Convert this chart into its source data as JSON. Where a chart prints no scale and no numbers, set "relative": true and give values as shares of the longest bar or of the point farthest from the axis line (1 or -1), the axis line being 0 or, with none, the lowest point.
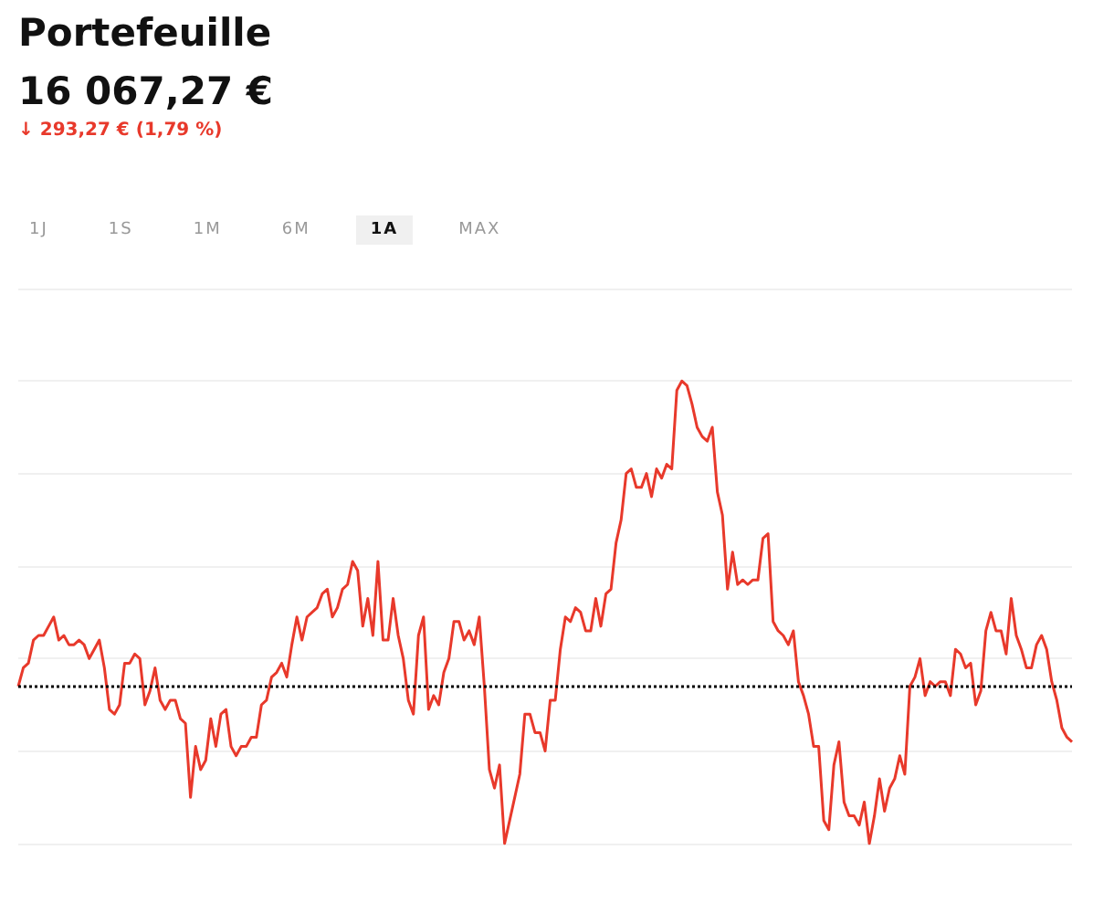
{
  "chart_data": {
    "type": "line",
    "title": "Portefeuille",
    "subtitle": "16 067,27 €",
    "annotations": [
      "↓ 293,27 € (1,79 %)",
      "1J",
      "1S",
      "1M",
      "6M",
      "1A",
      "MAX"
    ],
    "relative": true,
    "grid": "y",
    "line_style": "solid",
    "categories": [
      null,
      null,
      null,
      null,
      null,
      null,
      null,
      null,
      null,
      null,
      null,
      null,
      null,
      null,
      null,
      null,
      null,
      null,
      null,
      null,
      null,
      null,
      null,
      null,
      null,
      null,
      null,
      null,
      null,
      null,
      null,
      null,
      null,
      null,
      null,
      null,
      null,
      null,
      null,
      null,
      null,
      null,
      null,
      null,
      null,
      null,
      null,
      null,
      null,
      null,
      null,
      null,
      null,
      null,
      null,
      null,
      null,
      null,
      null,
      null,
      null,
      null,
      null,
      null,
      null,
      null,
      null,
      null,
      null,
      null,
      null,
      null,
      null,
      null,
      null,
      null,
      null,
      null,
      null,
      null,
      null,
      null,
      null,
      null,
      null,
      null,
      null,
      null,
      null,
      null,
      null,
      null,
      null,
      null,
      null,
      null,
      null,
      null,
      null,
      null,
      null,
      null,
      null,
      null,
      null,
      null,
      null,
      null,
      null,
      null,
      null,
      null,
      null,
      null,
      null,
      null,
      null,
      null,
      null,
      null,
      null,
      null,
      null,
      null,
      null,
      null,
      null,
      null,
      null,
      null,
      null,
      null,
      null,
      null,
      null,
      null,
      null,
      null,
      null,
      null,
      null,
      null,
      null,
      null,
      null,
      null,
      null,
      null,
      null,
      null,
      null,
      null,
      null,
      null,
      null,
      null,
      null,
      null,
      null,
      null,
      null,
      null,
      null,
      null,
      null,
      null,
      null,
      null,
      null,
      null,
      null,
      null,
      null,
      null,
      null,
      null,
      null,
      null,
      null,
      null,
      null,
      null,
      null,
      null,
      null,
      null,
      null,
      null,
      null,
      null,
      null,
      null,
      null,
      null,
      null,
      null,
      null,
      null,
      null,
      null,
      null,
      null,
      null,
      null,
      null,
      null,
      null,
      null,
      null
    ],
    "series": [
      {
        "color": "#e8392b",
        "values": [
          0.34,
          0.38,
          0.39,
          0.44,
          0.45,
          0.45,
          0.47,
          0.49,
          0.44,
          0.45,
          0.43,
          0.43,
          0.44,
          0.43,
          0.4,
          0.42,
          0.44,
          0.38,
          0.29,
          0.28,
          0.3,
          0.39,
          0.39,
          0.41,
          0.4,
          0.3,
          0.33,
          0.38,
          0.31,
          0.29,
          0.31,
          0.31,
          0.27,
          0.26,
          0.1,
          0.21,
          0.16,
          0.18,
          0.27,
          0.21,
          0.28,
          0.29,
          0.21,
          0.19,
          0.21,
          0.21,
          0.23,
          0.23,
          0.3,
          0.31,
          0.36,
          0.37,
          0.39,
          0.36,
          0.43,
          0.49,
          0.44,
          0.49,
          0.5,
          0.51,
          0.54,
          0.55,
          0.49,
          0.51,
          0.55,
          0.56,
          0.61,
          0.59,
          0.47,
          0.53,
          0.45,
          0.61,
          0.44,
          0.44,
          0.53,
          0.45,
          0.4,
          0.31,
          0.28,
          0.45,
          0.49,
          0.29,
          0.32,
          0.3,
          0.37,
          0.4,
          0.48,
          0.48,
          0.44,
          0.46,
          0.43,
          0.49,
          0.34,
          0.16,
          0.12,
          0.17,
          0.0,
          0.05,
          0.1,
          0.15,
          0.28,
          0.28,
          0.24,
          0.24,
          0.2,
          0.31,
          0.31,
          0.42,
          0.49,
          0.48,
          0.51,
          0.5,
          0.46,
          0.46,
          0.53,
          0.47,
          0.54,
          0.55,
          0.65,
          0.7,
          0.8,
          0.81,
          0.77,
          0.77,
          0.8,
          0.75,
          0.81,
          0.79,
          0.82,
          0.81,
          0.98,
          1,
          0.99,
          0.95,
          0.9,
          0.88,
          0.87,
          0.9,
          0.76,
          0.71,
          0.55,
          0.63,
          0.56,
          0.57,
          0.56,
          0.57,
          0.57,
          0.66,
          0.67,
          0.48,
          0.46,
          0.45,
          0.43,
          0.46,
          0.35,
          0.32,
          0.28,
          0.21,
          0.21,
          0.05,
          0.03,
          0.17,
          0.22,
          0.09,
          0.06,
          0.06,
          0.04,
          0.09,
          0,
          0.06,
          0.14,
          0.07,
          0.12,
          0.14,
          0.19,
          0.15,
          0.34,
          0.36,
          0.4,
          0.32,
          0.35,
          0.34,
          0.35,
          0.35,
          0.32,
          0.42,
          0.41,
          0.38,
          0.39,
          0.3,
          0.33,
          0.46,
          0.5,
          0.46,
          0.46,
          0.41,
          0.53,
          0.45,
          0.42,
          0.38,
          0.38,
          0.43,
          0.45,
          0.42,
          0.35,
          0.31,
          0.25,
          0.23,
          0.22
        ]
      }
    ],
    "ref_lines": [
      {
        "axis": "y",
        "value": 0.34,
        "color": "#000000",
        "line_style": "dotted"
      }
    ]
  }
}
